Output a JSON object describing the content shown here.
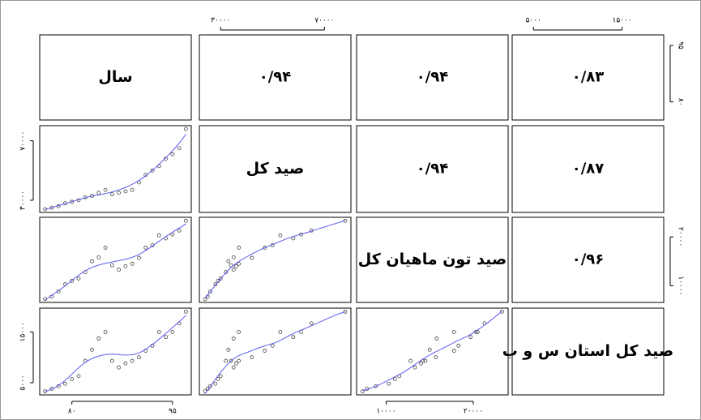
{
  "chart_data": {
    "type": "scatter-matrix",
    "point_color": "#444444",
    "smooth_color": "#5b5bf0",
    "variables": [
      {
        "name": "سال",
        "values": [
          76,
          77,
          78,
          79,
          80,
          81,
          82,
          83,
          84,
          85,
          86,
          87,
          88,
          89,
          90,
          91,
          92,
          93,
          94,
          95,
          96,
          97
        ],
        "lim": [
          75.2,
          97.8
        ],
        "ticks": [
          {
            "value": 80,
            "label": "۸۰"
          },
          {
            "value": 95,
            "label": "۹۵"
          }
        ]
      },
      {
        "name": "صید کل",
        "values": [
          24000,
          25000,
          26000,
          28000,
          29000,
          30000,
          32000,
          33000,
          35000,
          37000,
          34000,
          35000,
          36000,
          37000,
          42000,
          47000,
          50000,
          53000,
          58000,
          61000,
          65000,
          78000
        ],
        "lim": [
          21800,
          80200
        ],
        "ticks": [
          {
            "value": 30000,
            "label": "۳۰۰۰۰"
          },
          {
            "value": 70000,
            "label": "۷۰۰۰۰"
          }
        ]
      },
      {
        "name": "صید تون ماهیان کل",
        "values": [
          7300,
          7800,
          8800,
          10300,
          11000,
          11500,
          12800,
          15000,
          15800,
          17800,
          14200,
          13300,
          14000,
          14500,
          15700,
          17800,
          18300,
          20300,
          19700,
          20500,
          21300,
          23300
        ],
        "lim": [
          6600,
          24000
        ],
        "ticks": [
          {
            "value": 10000,
            "label": "۱۰۰۰۰"
          },
          {
            "value": 20000,
            "label": "۲۰۰۰۰"
          }
        ]
      },
      {
        "name": "صید کل استان س و ب",
        "values": [
          3300,
          3800,
          4300,
          4800,
          5700,
          6300,
          9300,
          11500,
          13700,
          15000,
          9300,
          8000,
          8800,
          9300,
          10000,
          11300,
          12300,
          15000,
          14000,
          15000,
          16700,
          19000
        ],
        "lim": [
          2600,
          19700
        ],
        "ticks": [
          {
            "value": 5000,
            "label": "۵۰۰۰"
          },
          {
            "value": 15000,
            "label": "۱۵۰۰۰"
          }
        ]
      }
    ],
    "correlations": [
      [
        "۰/۹۴",
        "۰/۹۴",
        "۰/۸۳"
      ],
      [
        "۰/۹۴",
        "۰/۸۷"
      ],
      [
        "۰/۹۶"
      ]
    ]
  }
}
